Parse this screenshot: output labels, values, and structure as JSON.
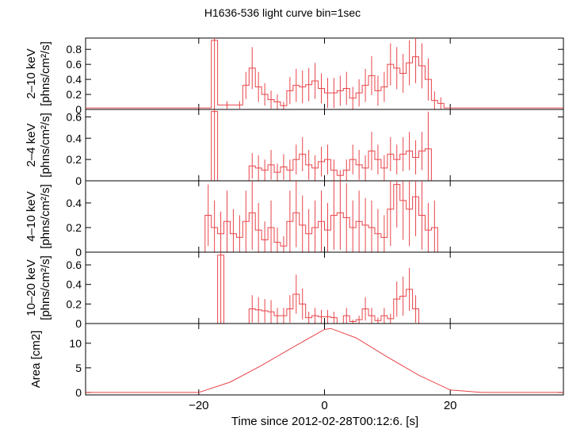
{
  "title": "H1636-536 light curve bin=1sec",
  "xlabel": "Time since 2012-02-28T00:12:6. [s]",
  "x_range": [
    -38,
    38
  ],
  "x_ticks": [
    -20,
    0,
    20
  ],
  "colors": {
    "data": "#e8454a",
    "axis": "#000000"
  },
  "chart_data": [
    {
      "type": "line",
      "step": true,
      "ylabel": "2–10 keV\n[phns/cm²/s]",
      "ylim": [
        0,
        0.95
      ],
      "y_ticks": [
        0,
        0.2,
        0.4,
        0.6,
        0.8
      ],
      "x": [
        -38,
        -19,
        -18,
        -17,
        -14,
        -13,
        -12,
        -11,
        -10,
        -9,
        -8,
        -7,
        -6,
        -5,
        -4,
        -3,
        -2,
        -1,
        0,
        1,
        2,
        3,
        4,
        5,
        6,
        7,
        8,
        9,
        10,
        11,
        12,
        13,
        14,
        15,
        16,
        17,
        18,
        19,
        38
      ],
      "values": [
        0.02,
        0.02,
        0.92,
        0.06,
        0.06,
        0.32,
        0.55,
        0.3,
        0.2,
        0.13,
        0.1,
        0.05,
        0.25,
        0.32,
        0.3,
        0.33,
        0.38,
        0.28,
        0.22,
        0.22,
        0.25,
        0.28,
        0.15,
        0.22,
        0.32,
        0.45,
        0.25,
        0.3,
        0.6,
        0.55,
        0.48,
        0.62,
        0.7,
        0.58,
        0.4,
        0.12,
        0.08,
        0.02,
        0.02
      ],
      "err": [
        0,
        0,
        0.95,
        0.05,
        0.05,
        0.18,
        0.28,
        0.2,
        0.15,
        0.12,
        0.1,
        0.05,
        0.18,
        0.22,
        0.22,
        0.22,
        0.24,
        0.2,
        0.2,
        0.2,
        0.2,
        0.22,
        0.15,
        0.18,
        0.22,
        0.26,
        0.2,
        0.2,
        0.28,
        0.28,
        0.26,
        0.3,
        0.35,
        0.3,
        0.28,
        0.12,
        0.08,
        0,
        0
      ]
    },
    {
      "type": "line",
      "step": true,
      "ylabel": "2–4 keV\n[phns/cm²/s]",
      "ylim": [
        0,
        0.67
      ],
      "y_ticks": [
        0,
        0.2,
        0.4,
        0.6
      ],
      "x": [
        -38,
        -18,
        -17,
        -12,
        -11,
        -10,
        -9,
        -8,
        -7,
        -6,
        -5,
        -4,
        -3,
        -2,
        -1,
        0,
        1,
        2,
        3,
        4,
        5,
        6,
        7,
        8,
        9,
        10,
        11,
        12,
        13,
        14,
        15,
        16,
        17,
        18,
        38
      ],
      "values": [
        0.0,
        0.65,
        0.0,
        0.14,
        0.12,
        0.1,
        0.15,
        0.08,
        0.13,
        0.1,
        0.2,
        0.25,
        0.15,
        0.12,
        0.18,
        0.2,
        0.1,
        0.05,
        0.1,
        0.2,
        0.15,
        0.12,
        0.28,
        0.2,
        0.12,
        0.25,
        0.2,
        0.25,
        0.28,
        0.22,
        0.28,
        0.3,
        0.0,
        0.0,
        0.0
      ],
      "err": [
        0,
        0.66,
        0,
        0.12,
        0.12,
        0.1,
        0.14,
        0.08,
        0.12,
        0.1,
        0.14,
        0.16,
        0.14,
        0.12,
        0.14,
        0.14,
        0.1,
        0.05,
        0.1,
        0.14,
        0.14,
        0.12,
        0.18,
        0.14,
        0.12,
        0.16,
        0.14,
        0.16,
        0.18,
        0.16,
        0.18,
        0.35,
        0,
        0,
        0
      ]
    },
    {
      "type": "line",
      "step": true,
      "ylabel": "4–10 keV\n[phns/cm²/s]",
      "ylim": [
        0,
        0.58
      ],
      "y_ticks": [
        0,
        0.2,
        0.4
      ],
      "x": [
        -38,
        -19,
        -18,
        -17,
        -16,
        -15,
        -14,
        -13,
        -12,
        -11,
        -10,
        -9,
        -8,
        -7,
        -6,
        -5,
        -4,
        -3,
        -2,
        -1,
        0,
        1,
        2,
        3,
        4,
        5,
        6,
        7,
        8,
        9,
        10,
        11,
        12,
        13,
        14,
        15,
        16,
        17,
        18,
        19,
        38
      ],
      "values": [
        0.0,
        0.3,
        0.2,
        0.15,
        0.25,
        0.15,
        0.12,
        0.25,
        0.32,
        0.18,
        0.1,
        0.2,
        0.08,
        0.05,
        0.25,
        0.32,
        0.22,
        0.15,
        0.2,
        0.25,
        0.18,
        0.3,
        0.32,
        0.28,
        0.2,
        0.25,
        0.22,
        0.2,
        0.15,
        0.12,
        0.35,
        0.55,
        0.42,
        0.35,
        0.45,
        0.3,
        0.18,
        0.2,
        0.0,
        0.0,
        0.0
      ],
      "err": [
        0,
        0.25,
        0.22,
        0.18,
        0.25,
        0.2,
        0.18,
        0.25,
        0.3,
        0.22,
        0.15,
        0.22,
        0.12,
        0.08,
        0.25,
        0.28,
        0.24,
        0.2,
        0.22,
        0.25,
        0.22,
        0.28,
        0.3,
        0.28,
        0.22,
        0.25,
        0.22,
        0.22,
        0.2,
        0.18,
        0.3,
        0.35,
        0.32,
        0.3,
        0.32,
        0.28,
        0.22,
        0.22,
        0,
        0,
        0
      ]
    },
    {
      "type": "line",
      "step": true,
      "ylabel": "10–20 keV\n[phns/cm²/s]",
      "ylim": [
        0,
        0.73
      ],
      "y_ticks": [
        0,
        0.2,
        0.4,
        0.6
      ],
      "x": [
        -38,
        -17,
        -16,
        -15,
        -12,
        -11,
        -10,
        -9,
        -8,
        -7,
        -6,
        -5,
        -4,
        -3,
        -2,
        -1,
        0,
        1,
        2,
        3,
        4,
        5,
        6,
        7,
        8,
        9,
        10,
        11,
        12,
        13,
        14,
        15,
        38
      ],
      "values": [
        0.0,
        0.7,
        0.0,
        0.0,
        0.15,
        0.14,
        0.13,
        0.12,
        0.08,
        0.08,
        0.15,
        0.3,
        0.2,
        0.06,
        0.08,
        0.07,
        0.07,
        0.06,
        0.0,
        0.08,
        0.02,
        0.04,
        0.15,
        0.08,
        0.03,
        0.08,
        0.05,
        0.25,
        0.28,
        0.35,
        0.15,
        0.0,
        0.0
      ],
      "err": [
        0,
        0.7,
        0,
        0,
        0.14,
        0.13,
        0.12,
        0.12,
        0.08,
        0.08,
        0.14,
        0.2,
        0.16,
        0.06,
        0.08,
        0.07,
        0.07,
        0.06,
        0,
        0.08,
        0.02,
        0.04,
        0.12,
        0.08,
        0.03,
        0.08,
        0.05,
        0.18,
        0.2,
        0.22,
        0.14,
        0,
        0
      ]
    },
    {
      "type": "line",
      "step": false,
      "ylabel": "Area [cm2]",
      "ylim": [
        -0.5,
        14
      ],
      "y_ticks": [
        0,
        5,
        10
      ],
      "x": [
        -38,
        -20,
        -15,
        -10,
        -5,
        0,
        1,
        5,
        10,
        15,
        20,
        25,
        38
      ],
      "values": [
        0,
        0,
        2.1,
        5.5,
        9.2,
        12.8,
        13.0,
        11.1,
        7.2,
        3.5,
        0.5,
        0,
        0
      ]
    }
  ]
}
